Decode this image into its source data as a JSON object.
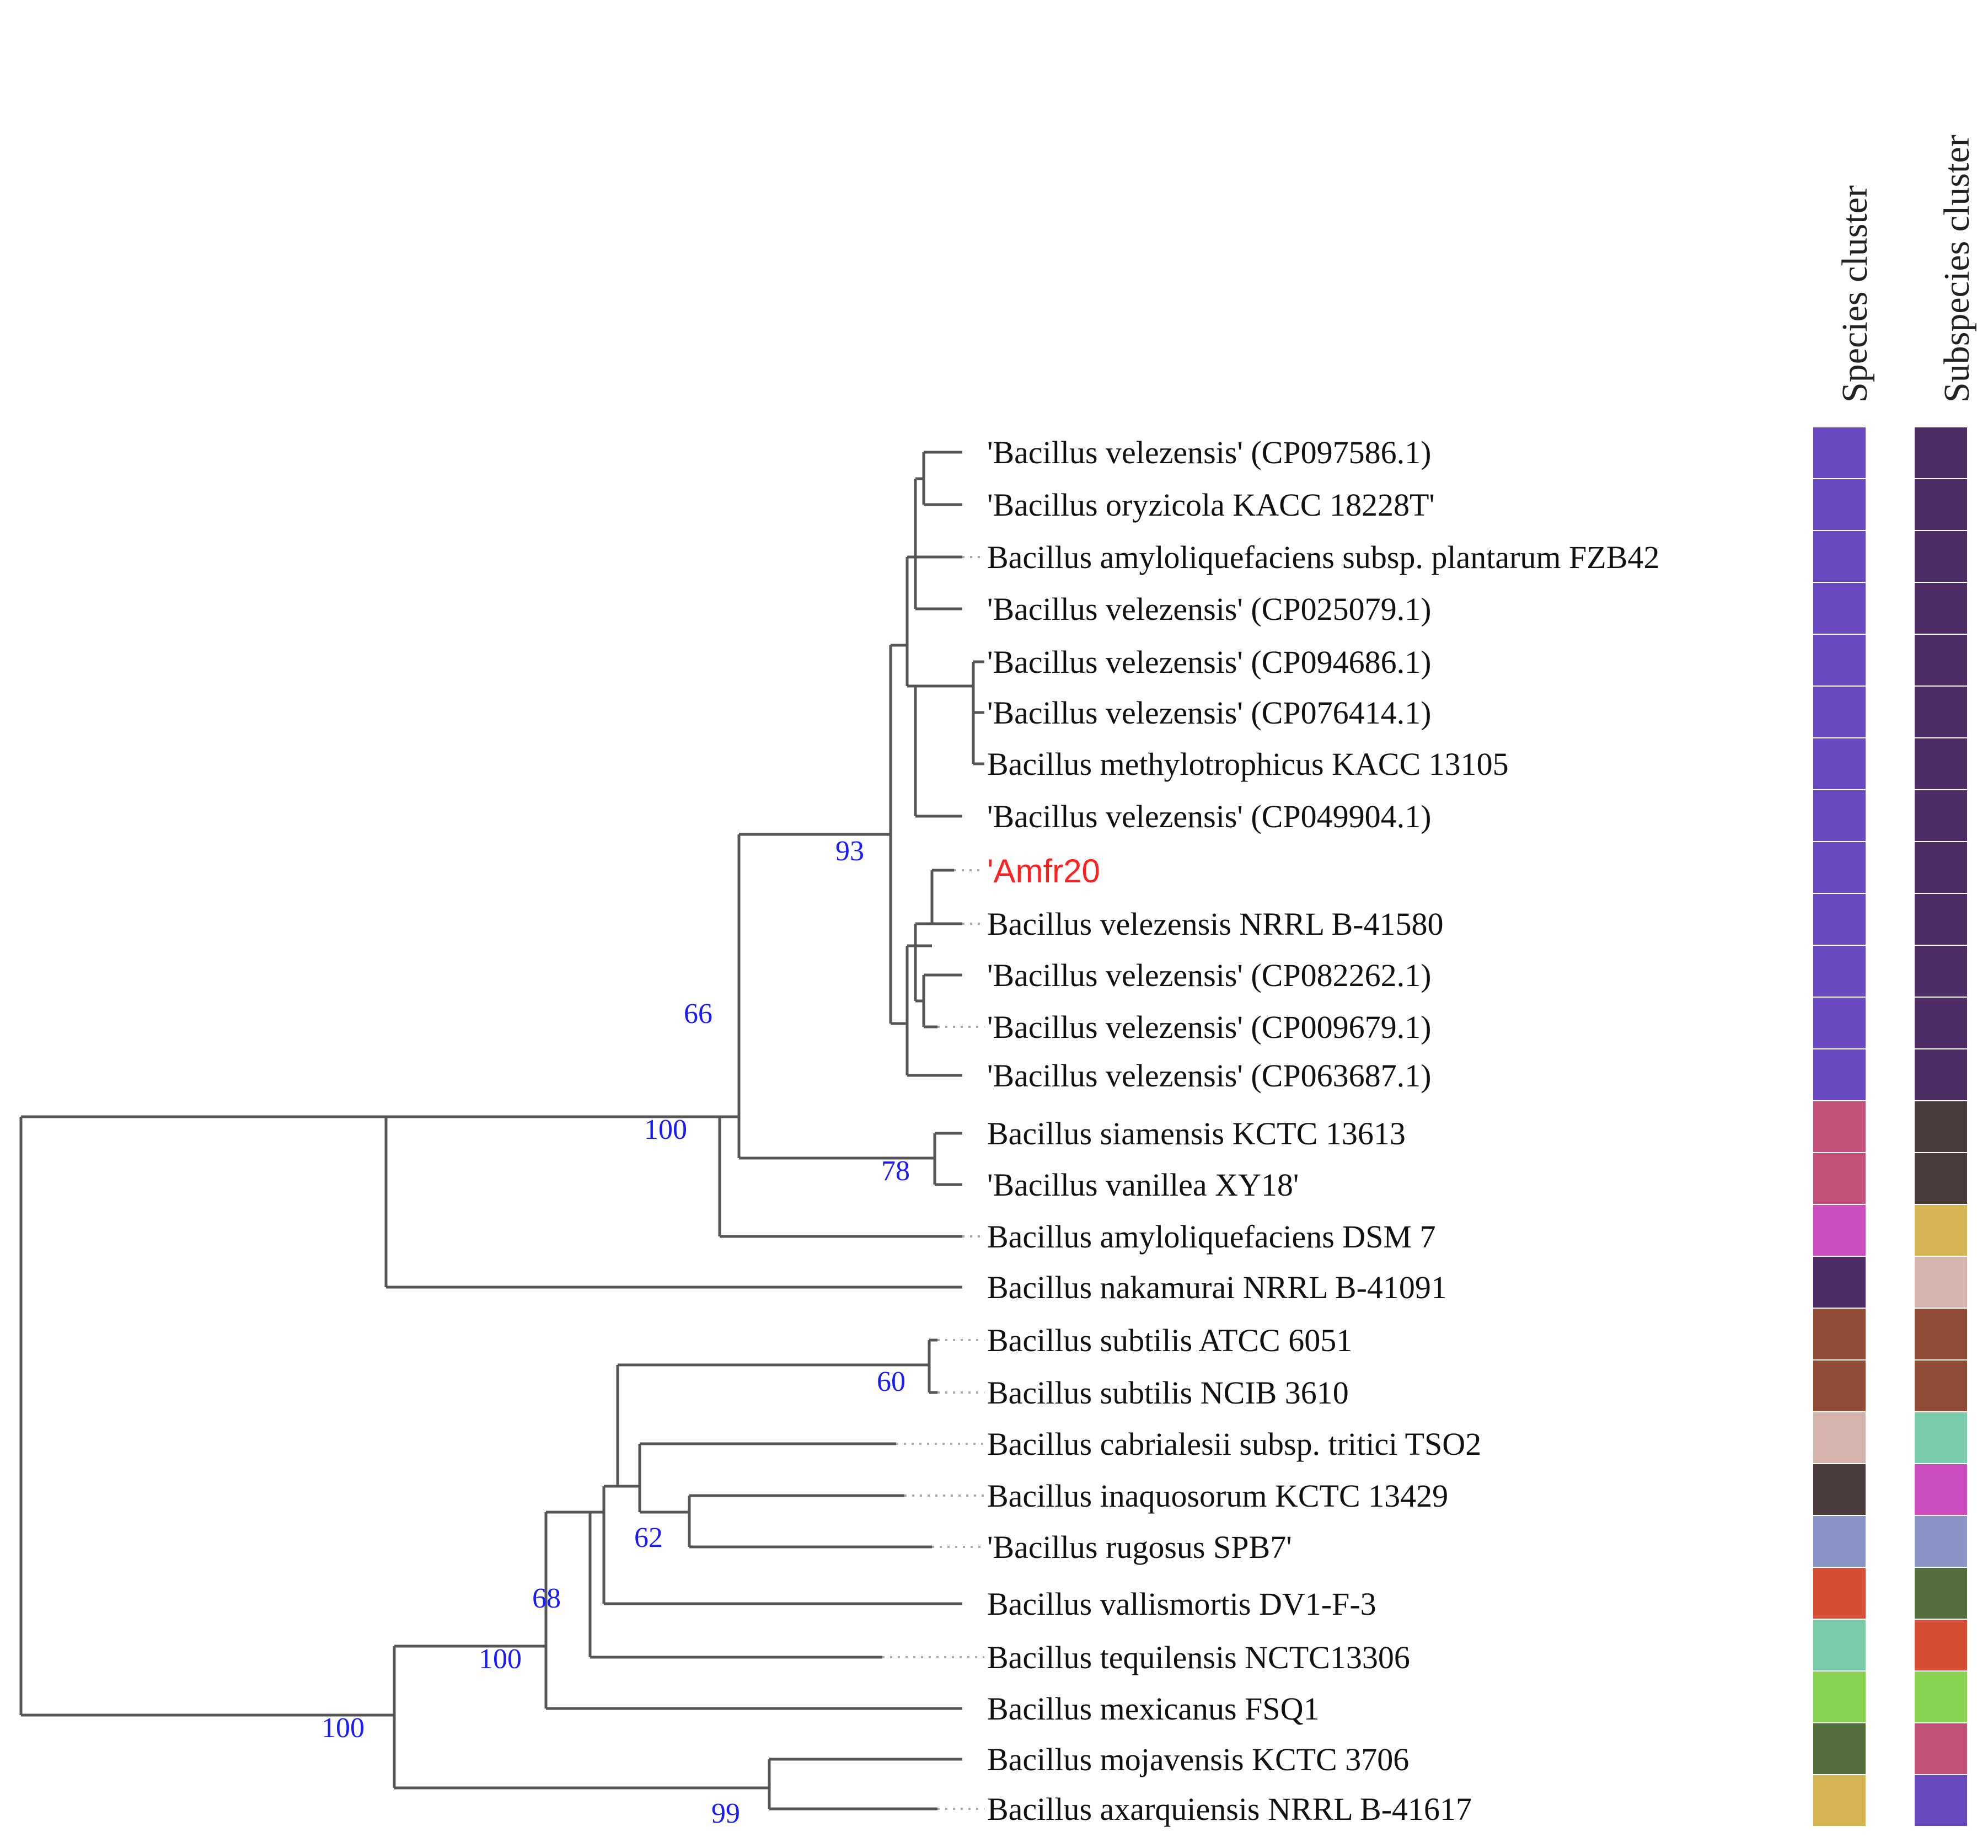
{
  "headers": {
    "species": "Species cluster",
    "subspecies": "Subspecies cluster"
  },
  "colors": {
    "highlight": "#ff2020",
    "bootstrap": "#1a1aff",
    "branch": "#555555"
  },
  "leaves": [
    {
      "label": "'Bacillus velezensis' (CP097586.1)",
      "species_color": "#6a48c2",
      "subspecies_color": "#4e2d64"
    },
    {
      "label": "'Bacillus oryzicola KACC 18228T'",
      "species_color": "#6a48c2",
      "subspecies_color": "#4e2d64"
    },
    {
      "label": "Bacillus amyloliquefaciens subsp. plantarum FZB42",
      "species_color": "#6a48c2",
      "subspecies_color": "#4e2d64"
    },
    {
      "label": "'Bacillus velezensis' (CP025079.1)",
      "species_color": "#6a48c2",
      "subspecies_color": "#4e2d64"
    },
    {
      "label": "'Bacillus velezensis' (CP094686.1)",
      "species_color": "#6a48c2",
      "subspecies_color": "#4e2d64"
    },
    {
      "label": "'Bacillus velezensis' (CP076414.1)",
      "species_color": "#6a48c2",
      "subspecies_color": "#4e2d64"
    },
    {
      "label": "Bacillus methylotrophicus KACC 13105",
      "species_color": "#6a48c2",
      "subspecies_color": "#4e2d64"
    },
    {
      "label": "'Bacillus velezensis' (CP049904.1)",
      "species_color": "#6a48c2",
      "subspecies_color": "#4e2d64"
    },
    {
      "label": "'Amfr20",
      "species_color": "#6a48c2",
      "subspecies_color": "#4e2d64",
      "highlight": true
    },
    {
      "label": "Bacillus velezensis NRRL B-41580",
      "species_color": "#6a48c2",
      "subspecies_color": "#4e2d64"
    },
    {
      "label": "'Bacillus velezensis' (CP082262.1)",
      "species_color": "#6a48c2",
      "subspecies_color": "#4e2d64"
    },
    {
      "label": "'Bacillus velezensis' (CP009679.1)",
      "species_color": "#6a48c2",
      "subspecies_color": "#4e2d64"
    },
    {
      "label": "'Bacillus velezensis' (CP063687.1)",
      "species_color": "#6a48c2",
      "subspecies_color": "#4e2d64"
    },
    {
      "label": "Bacillus siamensis KCTC 13613",
      "species_color": "#c4507a",
      "subspecies_color": "#4a3c3c"
    },
    {
      "label": "'Bacillus vanillea XY18'",
      "species_color": "#c4507a",
      "subspecies_color": "#4a3c3c"
    },
    {
      "label": "Bacillus amyloliquefaciens DSM 7",
      "species_color": "#cc4cc0",
      "subspecies_color": "#d4b450"
    },
    {
      "label": "Bacillus nakamurai NRRL B-41091",
      "species_color": "#4e2d64",
      "subspecies_color": "#d4b4ac"
    },
    {
      "label": "Bacillus subtilis ATCC 6051",
      "species_color": "#924c36",
      "subspecies_color": "#924c36"
    },
    {
      "label": "Bacillus subtilis NCIB 3610",
      "species_color": "#924c36",
      "subspecies_color": "#924c36"
    },
    {
      "label": "Bacillus cabrialesii subsp. tritici TSO2",
      "species_color": "#d4b4ac",
      "subspecies_color": "#78ccaa"
    },
    {
      "label": "Bacillus inaquosorum KCTC 13429",
      "species_color": "#4a3c3c",
      "subspecies_color": "#cc4cc0"
    },
    {
      "label": "'Bacillus rugosus SPB7'",
      "species_color": "#8894c4",
      "subspecies_color": "#8894c4"
    },
    {
      "label": "Bacillus vallismortis DV1-F-3",
      "species_color": "#d64e36",
      "subspecies_color": "#526e3c"
    },
    {
      "label": "Bacillus tequilensis NCTC13306",
      "species_color": "#78ccaa",
      "subspecies_color": "#d64e36"
    },
    {
      "label": "Bacillus mexicanus FSQ1",
      "species_color": "#88d050",
      "subspecies_color": "#88d050"
    },
    {
      "label": "Bacillus mojavensis KCTC 3706",
      "species_color": "#526e3c",
      "subspecies_color": "#c4507a"
    },
    {
      "label": "Bacillus axarquiensis NRRL B-41617",
      "species_color": "#d4b450",
      "subspecies_color": "#6a48c2"
    }
  ],
  "bootstrap": [
    "93",
    "66",
    "100",
    "78",
    "60",
    "62",
    "68",
    "100",
    "100",
    "99"
  ]
}
